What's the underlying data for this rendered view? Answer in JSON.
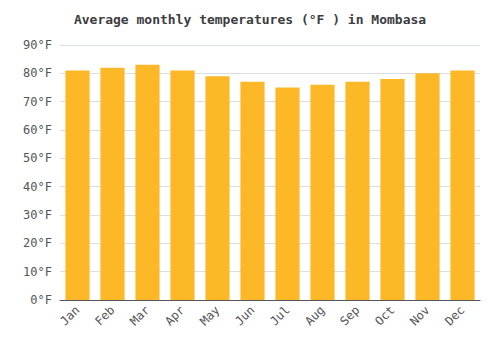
{
  "chart_data": {
    "type": "bar",
    "title": "Average monthly temperatures (°F ) in Mombasa",
    "categories": [
      "Jan",
      "Feb",
      "Mar",
      "Apr",
      "May",
      "Jun",
      "Jul",
      "Aug",
      "Sep",
      "Oct",
      "Nov",
      "Dec"
    ],
    "values": [
      81,
      82,
      83,
      81,
      79,
      77,
      75,
      76,
      77,
      78,
      80,
      81
    ],
    "color": "#FDB827",
    "ylim": [
      0,
      90
    ],
    "yticks": [
      {
        "value": 0,
        "label": "0°F"
      },
      {
        "value": 10,
        "label": "10°F"
      },
      {
        "value": 20,
        "label": "20°F"
      },
      {
        "value": 30,
        "label": "30°F"
      },
      {
        "value": 40,
        "label": "40°F"
      },
      {
        "value": 50,
        "label": "50°F"
      },
      {
        "value": 60,
        "label": "60°F"
      },
      {
        "value": 70,
        "label": "70°F"
      },
      {
        "value": 80,
        "label": "80°F"
      },
      {
        "value": 90,
        "label": "90°F"
      }
    ],
    "grid": true
  }
}
